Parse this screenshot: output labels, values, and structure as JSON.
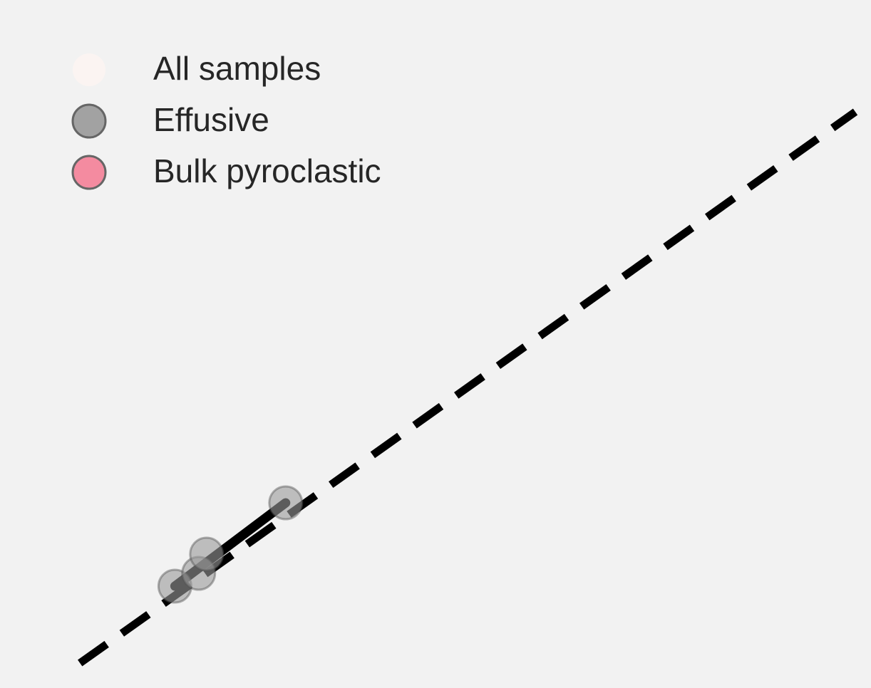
{
  "chart_data": {
    "type": "scatter",
    "title": "",
    "xlabel": "",
    "ylabel": "",
    "grid": false,
    "axes_visible": false,
    "xlim": [
      0,
      10
    ],
    "ylim": [
      0,
      10
    ],
    "legend": {
      "placement": "top-left",
      "entries": [
        {
          "label": "All samples",
          "color": "#fbf4f2"
        },
        {
          "label": "Effusive",
          "color": "#999999"
        },
        {
          "label": "Bulk pyroclastic",
          "color": "#f47f97"
        }
      ]
    },
    "series": [
      {
        "name": "Effusive",
        "color": "#999999",
        "points": [
          {
            "x": 1.4,
            "y": 1.3
          },
          {
            "x": 1.7,
            "y": 1.5
          },
          {
            "x": 1.8,
            "y": 1.8
          },
          {
            "x": 2.8,
            "y": 2.6
          }
        ]
      }
    ],
    "lines": [
      {
        "style": "dashed",
        "color": "#000000",
        "x": [
          0.2,
          10.0
        ],
        "y": [
          0.1,
          8.7
        ]
      },
      {
        "style": "solid",
        "color": "#000000",
        "x": [
          1.4,
          2.8
        ],
        "y": [
          1.3,
          2.6
        ]
      }
    ]
  }
}
